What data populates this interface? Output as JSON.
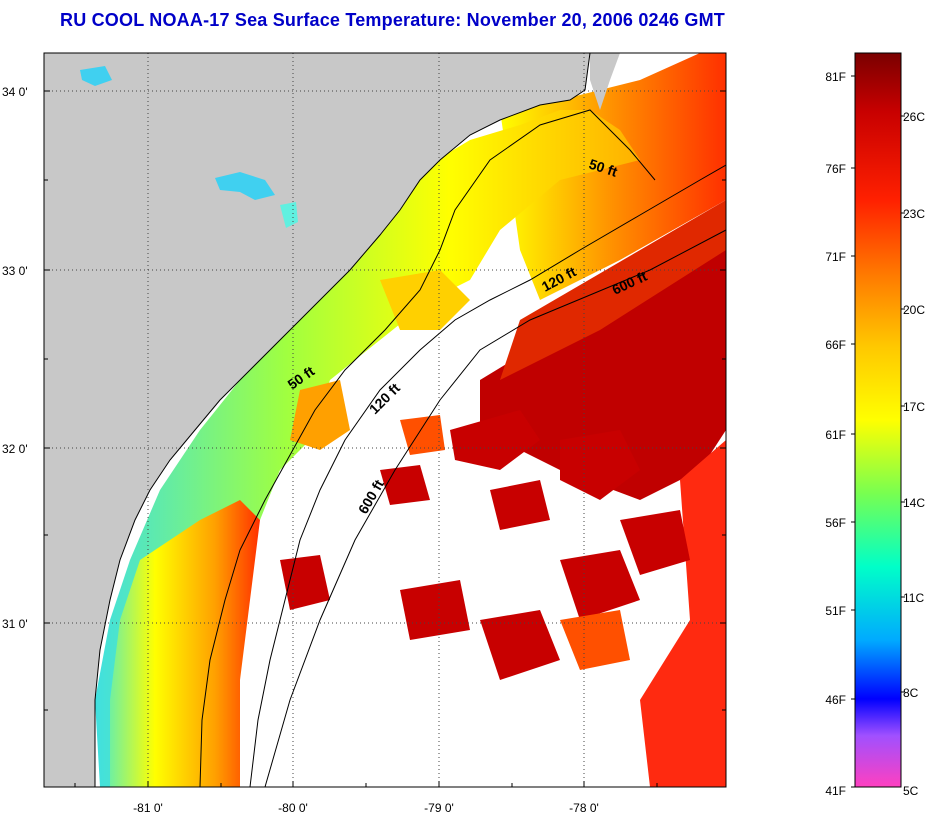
{
  "title": "RU COOL  NOAA-17  Sea Surface Temperature:  November 20, 2006 0246 GMT",
  "lat_labels": [
    "34 0'",
    "33 0'",
    "32 0'",
    "31 0'"
  ],
  "lon_labels": [
    "-81 0'",
    "-80 0'",
    "-79 0'",
    "-78 0'"
  ],
  "contour_labels": {
    "ne_50": "50 ft",
    "ne_120": "120 ft",
    "ne_600": "600 ft",
    "mid_50": "50 ft",
    "mid_120": "120 ft",
    "mid_600": "600 ft"
  },
  "colorbar": {
    "fahrenheit": [
      "81F",
      "76F",
      "71F",
      "66F",
      "61F",
      "56F",
      "51F",
      "46F",
      "41F"
    ],
    "celsius": [
      "26C",
      "23C",
      "20C",
      "17C",
      "14C",
      "11C",
      "8C",
      "5C"
    ]
  },
  "colors": {
    "land": "#c8c8c8",
    "cloud": "#ffffff",
    "title": "#0000c8"
  }
}
